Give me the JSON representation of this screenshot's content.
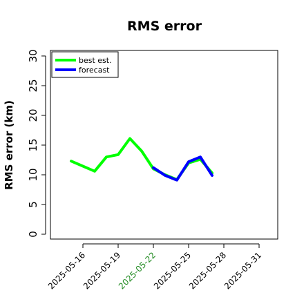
{
  "chart_data": {
    "type": "line",
    "title": "RMS error",
    "ylabel": "RMS error (km)",
    "xlabel": "",
    "ylim": [
      0,
      30
    ],
    "yticks": [
      0,
      5,
      10,
      15,
      20,
      25,
      30
    ],
    "xlim": [
      "2025-05-14",
      "2025-06-02"
    ],
    "xticks": [
      "2025-05-16",
      "2025-05-19",
      "2025-05-22",
      "2025-05-25",
      "2025-05-28",
      "2025-05-31"
    ],
    "highlight_tick": "2025-05-22",
    "highlight_color": "#228b22",
    "grid": false,
    "legend_position": "top-left",
    "series": [
      {
        "name": "best est.",
        "color": "#00ff00",
        "x": [
          "2025-05-15",
          "2025-05-17",
          "2025-05-18",
          "2025-05-19",
          "2025-05-20",
          "2025-05-21",
          "2025-05-22",
          "2025-05-23",
          "2025-05-24",
          "2025-05-25",
          "2025-05-26",
          "2025-05-27"
        ],
        "values": [
          12.3,
          10.6,
          13.0,
          13.4,
          16.1,
          14.0,
          11.0,
          10.0,
          9.2,
          12.0,
          12.6,
          10.3
        ]
      },
      {
        "name": "forecast",
        "color": "#0000ff",
        "x": [
          "2025-05-22",
          "2025-05-23",
          "2025-05-24",
          "2025-05-25",
          "2025-05-26",
          "2025-05-27"
        ],
        "values": [
          11.2,
          9.9,
          9.1,
          12.2,
          13.0,
          9.9
        ]
      }
    ]
  }
}
